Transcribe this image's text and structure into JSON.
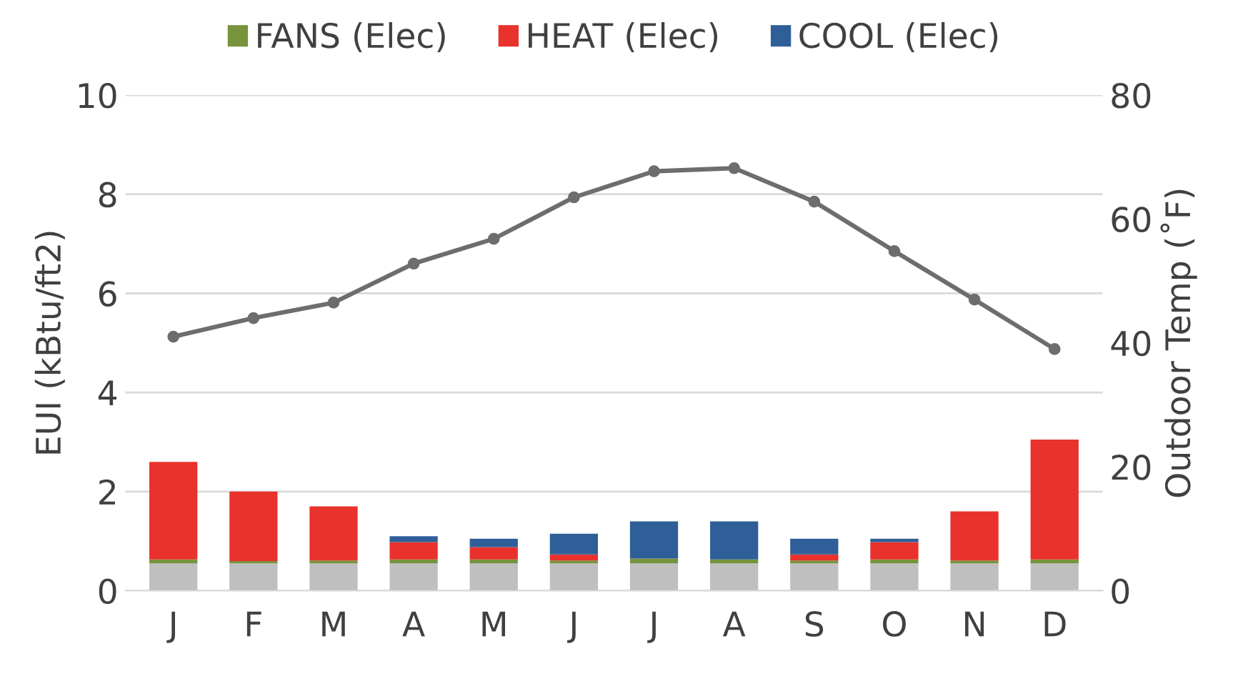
{
  "chart_data": {
    "type": "bar",
    "stacked": true,
    "categories": [
      "J",
      "F",
      "M",
      "A",
      "M",
      "J",
      "J",
      "A",
      "S",
      "O",
      "N",
      "D"
    ],
    "ylabel": "EUI (kBtu/ft2)",
    "y2label": "Outdoor Temp (˚F)",
    "ylim": [
      0,
      10
    ],
    "yticks": [
      0,
      2,
      4,
      6,
      8,
      10
    ],
    "y2lim": [
      0,
      80
    ],
    "y2ticks": [
      0,
      20,
      40,
      60,
      80
    ],
    "grid": "y",
    "legend": "top",
    "series": [
      {
        "color": "#bfbfbf",
        "values": [
          0.55,
          0.55,
          0.55,
          0.55,
          0.55,
          0.55,
          0.55,
          0.55,
          0.55,
          0.55,
          0.55,
          0.55
        ]
      },
      {
        "name": "FANS (Elec)",
        "color": "#77933c",
        "values": [
          0.08,
          0.05,
          0.06,
          0.08,
          0.08,
          0.06,
          0.1,
          0.08,
          0.06,
          0.08,
          0.06,
          0.08
        ]
      },
      {
        "name": "HEAT (Elec)",
        "color": "#e8322b",
        "values": [
          1.97,
          1.4,
          1.09,
          0.35,
          0.25,
          0.12,
          0,
          0,
          0.12,
          0.35,
          0.99,
          2.42
        ]
      },
      {
        "name": "COOL (Elec)",
        "color": "#2f5f98",
        "values": [
          0,
          0,
          0,
          0.12,
          0.17,
          0.42,
          0.75,
          0.77,
          0.32,
          0.07,
          0,
          0
        ]
      },
      {
        "type": "line",
        "axis": "y2",
        "color": "#6d6d6d",
        "marker": "circle",
        "values": [
          41,
          44,
          46.5,
          52.8,
          56.8,
          63.5,
          67.7,
          68.2,
          62.8,
          54.8,
          47,
          39
        ]
      }
    ]
  }
}
